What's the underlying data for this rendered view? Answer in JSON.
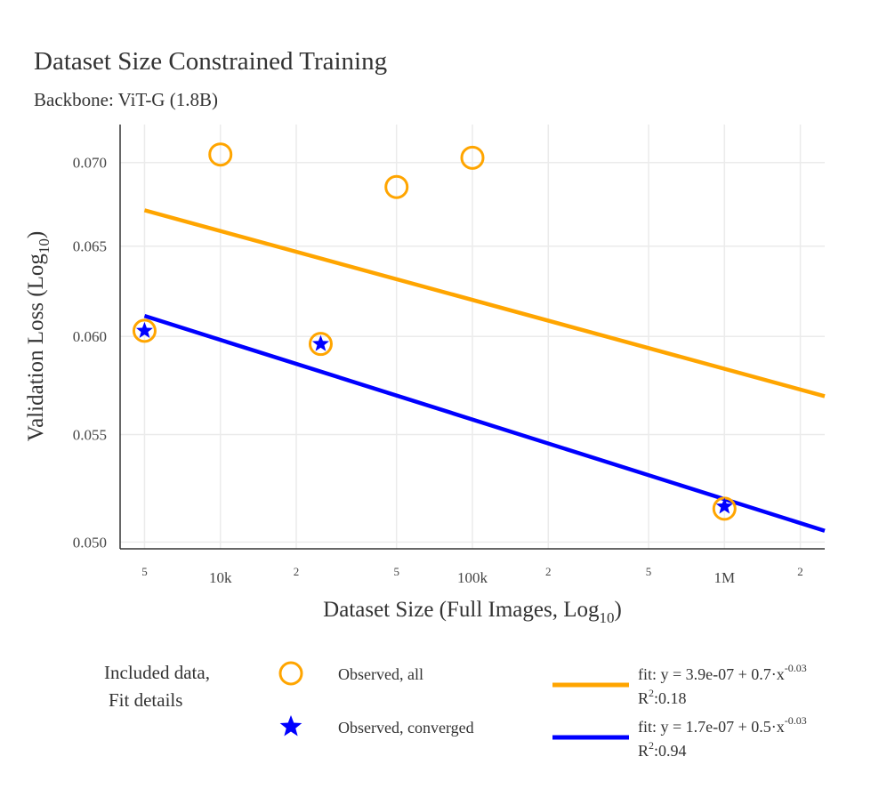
{
  "chart_data": {
    "type": "scatter",
    "title": "Dataset Size Constrained Training",
    "subtitle": "Backbone: ViT-G (1.8B)",
    "xlabel": "Dataset Size (Full Images, Log",
    "xlabel_sub": "10",
    "xlabel_end": ")",
    "ylabel": "Validation Loss (Log",
    "ylabel_sub": "10",
    "ylabel_end": ")",
    "x_scale": "log",
    "y_scale": "log",
    "xlim": [
      4000,
      2500000
    ],
    "ylim": [
      0.0497,
      0.0724
    ],
    "x_ticks": [
      {
        "value": 5000,
        "label": "5",
        "minor": true
      },
      {
        "value": 10000,
        "label": "10k",
        "minor": false
      },
      {
        "value": 20000,
        "label": "2",
        "minor": true
      },
      {
        "value": 50000,
        "label": "5",
        "minor": true
      },
      {
        "value": 100000,
        "label": "100k",
        "minor": false
      },
      {
        "value": 200000,
        "label": "2",
        "minor": true
      },
      {
        "value": 500000,
        "label": "5",
        "minor": true
      },
      {
        "value": 1000000,
        "label": "1M",
        "minor": false
      },
      {
        "value": 2000000,
        "label": "2",
        "minor": true
      }
    ],
    "y_ticks": [
      {
        "value": 0.05,
        "label": "0.050"
      },
      {
        "value": 0.055,
        "label": "0.055"
      },
      {
        "value": 0.06,
        "label": "0.060"
      },
      {
        "value": 0.065,
        "label": "0.065"
      },
      {
        "value": 0.07,
        "label": "0.070"
      }
    ],
    "grid": true,
    "series": [
      {
        "name": "Observed, all",
        "marker": "circle",
        "color": "#FFA500",
        "x": [
          5000,
          10000,
          25000,
          50000,
          100000,
          1000000
        ],
        "y": [
          0.0603,
          0.0705,
          0.0596,
          0.0685,
          0.0703,
          0.0515
        ]
      },
      {
        "name": "Observed, converged",
        "marker": "star",
        "color": "#0000FF",
        "x": [
          5000,
          25000,
          1000000
        ],
        "y": [
          0.0603,
          0.0596,
          0.0516
        ]
      }
    ],
    "fits": [
      {
        "name": "fit all",
        "color": "#FFA500",
        "x": [
          5000,
          2500000
        ],
        "y": [
          0.0671,
          0.0569
        ],
        "label_main": "fit: y = 3.9e-07 + 0.7·x",
        "label_exp": "-0.03",
        "r2_label": "R",
        "r2_exp": "2",
        "r2_value": ":0.18"
      },
      {
        "name": "fit converged",
        "color": "#0000FF",
        "x": [
          5000,
          2500000
        ],
        "y": [
          0.0611,
          0.0505
        ],
        "label_main": "fit: y = 1.7e-07 + 0.5·x",
        "label_exp": "-0.03",
        "r2_label": "R",
        "r2_exp": "2",
        "r2_value": ":0.94"
      }
    ],
    "legend": {
      "placement": "bottom",
      "heading_line1": "Included data,",
      "heading_line2": "Fit details"
    }
  }
}
